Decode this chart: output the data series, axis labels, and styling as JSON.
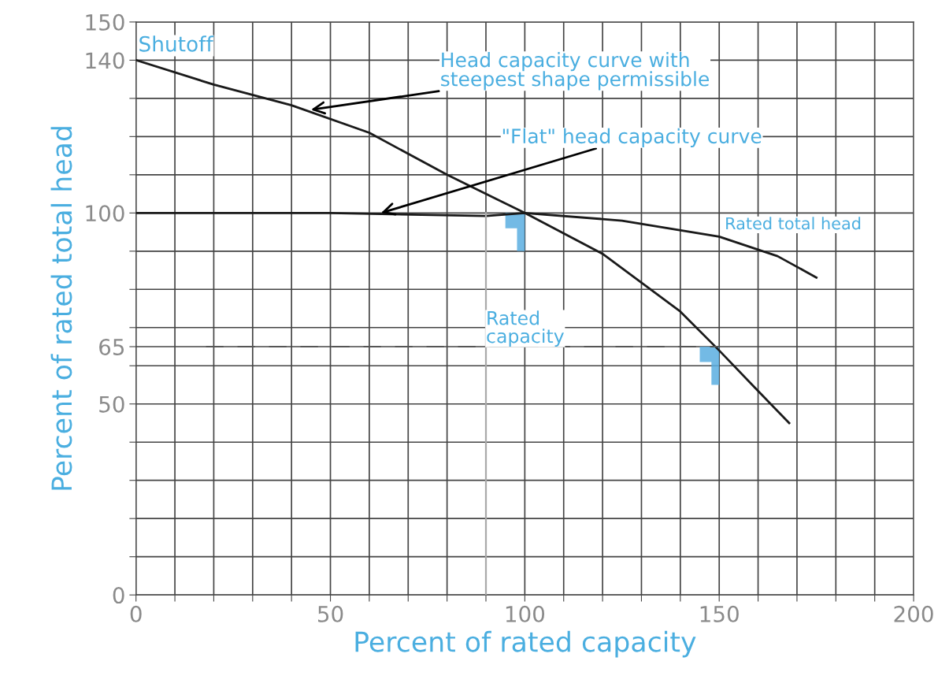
{
  "chart_data": {
    "type": "line",
    "xlabel": "Percent of rated capacity",
    "ylabel": "Percent of rated total head",
    "xlim": [
      0,
      200
    ],
    "ylim": [
      0,
      150
    ],
    "xticks": [
      0,
      {
        "value": 10,
        "label": null
      },
      {
        "value": 20,
        "label": null
      },
      {
        "value": 30,
        "label": null
      },
      {
        "value": 40,
        "label": null
      },
      50,
      {
        "value": 60,
        "label": null
      },
      {
        "value": 70,
        "label": null
      },
      {
        "value": 80,
        "label": null
      },
      {
        "value": 90,
        "label": null
      },
      100,
      {
        "value": 110,
        "label": null
      },
      {
        "value": 120,
        "label": null
      },
      {
        "value": 130,
        "label": null
      },
      {
        "value": 140,
        "label": null
      },
      150,
      {
        "value": 160,
        "label": null
      },
      {
        "value": 170,
        "label": null
      },
      {
        "value": 180,
        "label": null
      },
      {
        "value": 190,
        "label": null
      },
      200
    ],
    "yticks": [
      0,
      {
        "value": 10,
        "label": null
      },
      {
        "value": 20,
        "label": null
      },
      {
        "value": 30,
        "label": null
      },
      {
        "value": 40,
        "label": null
      },
      50,
      {
        "value": 60,
        "label": null
      },
      65,
      {
        "value": 70,
        "label": null
      },
      {
        "value": 80,
        "label": null
      },
      {
        "value": 90,
        "label": null
      },
      100,
      {
        "value": 110,
        "label": null
      },
      {
        "value": 120,
        "label": null
      },
      {
        "value": 130,
        "label": null
      },
      140,
      150
    ],
    "grid": true,
    "series": [
      {
        "color": "#1a1a1a",
        "line_style": "solid",
        "x": [
          0,
          20,
          40,
          60,
          80,
          100,
          120,
          140,
          150,
          160,
          168
        ],
        "values": [
          140,
          133.6,
          128.2,
          121,
          110,
          100,
          89.3,
          74.2,
          64,
          53.4,
          45
        ]
      },
      {
        "color": "#1a1a1a",
        "line_style": "solid",
        "x": [
          0,
          50,
          90,
          100,
          125,
          150,
          165,
          175
        ],
        "values": [
          100,
          100,
          99.2,
          100,
          98,
          93.8,
          88.7,
          83.1
        ]
      },
      {
        "color": "#555555",
        "line_style": "dashed",
        "x": [
          18,
          150
        ],
        "values": [
          65,
          65
        ]
      },
      {
        "color": "#aaaaaa",
        "line_style": "solid",
        "x": [
          90,
          90
        ],
        "values": [
          0,
          100
        ]
      }
    ],
    "annotations": [
      {
        "text": "Shutoff",
        "x": 0,
        "y": 140
      },
      {
        "text": "Head capacity curve with\nsteepest shape permissible",
        "x": 45,
        "y": 127
      },
      {
        "text": "\"Flat\" head capacity curve",
        "x": 63,
        "y": 100
      },
      "Rated total head",
      {
        "text": "Rated\ncapacity",
        "x": 90,
        "y": 65
      }
    ]
  }
}
